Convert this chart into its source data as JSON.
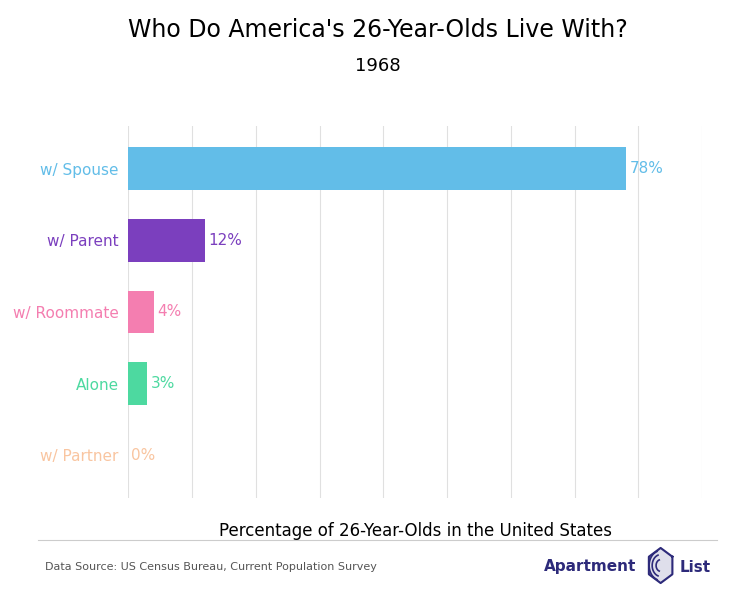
{
  "title": "Who Do America's 26-Year-Olds Live With?",
  "subtitle": "1968",
  "categories": [
    "w/ Spouse",
    "w/ Parent",
    "w/ Roommate",
    "Alone",
    "w/ Partner"
  ],
  "values": [
    78,
    12,
    4,
    3,
    0
  ],
  "bar_colors": [
    "#62bde8",
    "#7b3fbe",
    "#f47eb0",
    "#4dd9a0",
    "#f9c5a0"
  ],
  "label_colors": [
    "#62bde8",
    "#7b3fbe",
    "#f47eb0",
    "#4dd9a0",
    "#f9c5a0"
  ],
  "value_labels": [
    "78%",
    "12%",
    "4%",
    "3%",
    "0%"
  ],
  "xlabel": "Percentage of 26-Year-Olds in the United States",
  "xlim": [
    0,
    90
  ],
  "background_color": "#ffffff",
  "title_fontsize": 17,
  "subtitle_fontsize": 13,
  "xlabel_fontsize": 12,
  "tick_label_fontsize": 11,
  "value_label_fontsize": 11,
  "data_source": "Data Source: US Census Bureau, Current Population Survey",
  "brand_color": "#2d2a7a",
  "grid_color": "#e0e0e0",
  "footer_line_color": "#cccccc"
}
